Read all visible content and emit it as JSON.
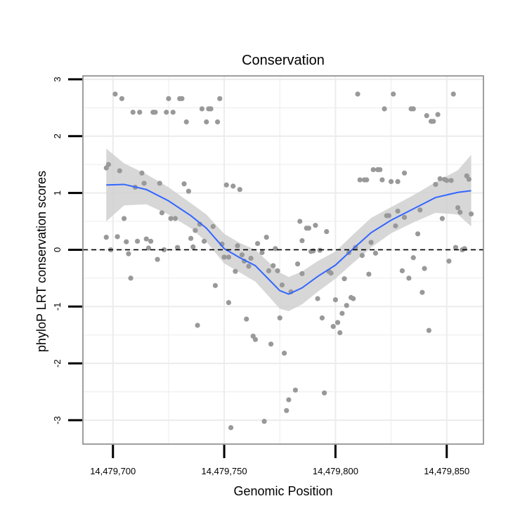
{
  "chart_data": {
    "type": "scatter",
    "title": "Conservation",
    "xlabel": "Genomic Position",
    "ylabel": "phyloP LRT conservation scores",
    "xlim": [
      14479686.5,
      14479866.5
    ],
    "ylim": [
      -3.42,
      3.06
    ],
    "x_ticks": [
      {
        "value": 14479700,
        "label": "14,479,700"
      },
      {
        "value": 14479750,
        "label": "14,479,750"
      },
      {
        "value": 14479800,
        "label": "14,479,800"
      },
      {
        "value": 14479850,
        "label": "14,479,850"
      }
    ],
    "y_ticks": [
      {
        "value": -3,
        "label": "-3"
      },
      {
        "value": -2,
        "label": "-2"
      },
      {
        "value": -1,
        "label": "-1"
      },
      {
        "value": 0,
        "label": "0"
      },
      {
        "value": 1,
        "label": "1"
      },
      {
        "value": 2,
        "label": "2"
      },
      {
        "value": 3,
        "label": "3"
      }
    ],
    "grid": true,
    "reference_line": {
      "y": 0,
      "style": "dashed"
    },
    "colors": {
      "points": "#999999",
      "smooth": "#3366ff",
      "ribbon": "#d0d0d0",
      "grid": "#ececec",
      "frame": "#7f7f7f"
    },
    "points": [
      [
        14479697,
        1.44
      ],
      [
        14479698,
        1.5
      ],
      [
        14479697,
        0.22
      ],
      [
        14479699,
        0.0
      ],
      [
        14479701,
        2.74
      ],
      [
        14479702,
        0.23
      ],
      [
        14479703,
        1.39
      ],
      [
        14479704,
        2.66
      ],
      [
        14479705,
        0.55
      ],
      [
        14479706,
        0.14
      ],
      [
        14479707,
        -0.07
      ],
      [
        14479708,
        -0.5
      ],
      [
        14479709,
        2.42
      ],
      [
        14479710,
        1.1
      ],
      [
        14479711,
        0.15
      ],
      [
        14479712,
        2.42
      ],
      [
        14479713,
        1.35
      ],
      [
        14479714,
        1.17
      ],
      [
        14479715,
        0.19
      ],
      [
        14479716,
        0.03
      ],
      [
        14479717,
        0.15
      ],
      [
        14479718,
        2.42
      ],
      [
        14479719,
        2.42
      ],
      [
        14479720,
        -0.17
      ],
      [
        14479721,
        1.17
      ],
      [
        14479722,
        0.65
      ],
      [
        14479723,
        0.0
      ],
      [
        14479724,
        2.42
      ],
      [
        14479725,
        2.66
      ],
      [
        14479726,
        0.55
      ],
      [
        14479727,
        2.42
      ],
      [
        14479728,
        0.55
      ],
      [
        14479729,
        0.04
      ],
      [
        14479730,
        2.66
      ],
      [
        14479731,
        2.66
      ],
      [
        14479732,
        1.16
      ],
      [
        14479733,
        2.25
      ],
      [
        14479734,
        1.03
      ],
      [
        14479735,
        0.2
      ],
      [
        14479736,
        0.05
      ],
      [
        14479737,
        0.34
      ],
      [
        14479738,
        -1.33
      ],
      [
        14479739,
        0.45
      ],
      [
        14479740,
        2.48
      ],
      [
        14479741,
        0.15
      ],
      [
        14479742,
        2.25
      ],
      [
        14479743,
        2.48
      ],
      [
        14479744,
        2.48
      ],
      [
        14479745,
        0.41
      ],
      [
        14479746,
        -0.63
      ],
      [
        14479747,
        2.25
      ],
      [
        14479748,
        2.66
      ],
      [
        14479749,
        0.1
      ],
      [
        14479750,
        -0.13
      ],
      [
        14479751,
        1.14
      ],
      [
        14479752,
        -0.13
      ],
      [
        14479752,
        -0.93
      ],
      [
        14479754,
        1.12
      ],
      [
        14479755,
        -0.38
      ],
      [
        14479756,
        0.07
      ],
      [
        14479757,
        1.06
      ],
      [
        14479758,
        -0.09
      ],
      [
        14479759,
        -0.2
      ],
      [
        14479760,
        -1.22
      ],
      [
        14479761,
        -0.29
      ],
      [
        14479762,
        -0.15
      ],
      [
        14479763,
        -1.52
      ],
      [
        14479764,
        -1.58
      ],
      [
        14479765,
        0.11
      ],
      [
        14479767,
        -0.05
      ],
      [
        14479768,
        -3.02
      ],
      [
        14479769,
        0.22
      ],
      [
        14479770,
        -0.37
      ],
      [
        14479771,
        -1.66
      ],
      [
        14479772,
        -0.28
      ],
      [
        14479753,
        -3.13
      ],
      [
        14479773,
        0.02
      ],
      [
        14479774,
        -0.37
      ],
      [
        14479775,
        -1.2
      ],
      [
        14479776,
        -0.62
      ],
      [
        14479777,
        -1.82
      ],
      [
        14479778,
        -2.83
      ],
      [
        14479779,
        -2.64
      ],
      [
        14479780,
        -0.74
      ],
      [
        14479782,
        -2.47
      ],
      [
        14479783,
        -0.25
      ],
      [
        14479784,
        0.5
      ],
      [
        14479785,
        -0.42
      ],
      [
        14479785,
        0.16
      ],
      [
        14479787,
        0.38
      ],
      [
        14479788,
        0.38
      ],
      [
        14479789,
        -0.03
      ],
      [
        14479790,
        -0.02
      ],
      [
        14479791,
        0.43
      ],
      [
        14479792,
        -0.86
      ],
      [
        14479793,
        -0.01
      ],
      [
        14479794,
        -1.2
      ],
      [
        14479795,
        -2.52
      ],
      [
        14479796,
        0.32
      ],
      [
        14479797,
        -0.38
      ],
      [
        14479798,
        -0.41
      ],
      [
        14479799,
        -1.35
      ],
      [
        14479800,
        -0.88
      ],
      [
        14479801,
        -1.28
      ],
      [
        14479802,
        -1.46
      ],
      [
        14479803,
        -1.12
      ],
      [
        14479804,
        -0.51
      ],
      [
        14479805,
        -0.98
      ],
      [
        14479806,
        -0.05
      ],
      [
        14479807,
        -0.84
      ],
      [
        14479808,
        -0.86
      ],
      [
        14479809,
        0.04
      ],
      [
        14479810,
        2.74
      ],
      [
        14479811,
        1.23
      ],
      [
        14479812,
        -0.1
      ],
      [
        14479813,
        1.23
      ],
      [
        14479814,
        1.23
      ],
      [
        14479815,
        -0.43
      ],
      [
        14479816,
        0.13
      ],
      [
        14479817,
        1.41
      ],
      [
        14479818,
        -0.06
      ],
      [
        14479819,
        1.41
      ],
      [
        14479820,
        1.41
      ],
      [
        14479821,
        1.23
      ],
      [
        14479822,
        2.48
      ],
      [
        14479823,
        0.6
      ],
      [
        14479824,
        0.6
      ],
      [
        14479825,
        1.2
      ],
      [
        14479826,
        2.74
      ],
      [
        14479827,
        0.42
      ],
      [
        14479828,
        1.2
      ],
      [
        14479828,
        0.68
      ],
      [
        14479830,
        -0.37
      ],
      [
        14479831,
        1.35
      ],
      [
        14479831,
        0.57
      ],
      [
        14479833,
        -0.5
      ],
      [
        14479834,
        2.48
      ],
      [
        14479835,
        2.48
      ],
      [
        14479835,
        -0.14
      ],
      [
        14479837,
        0.28
      ],
      [
        14479838,
        0.7
      ],
      [
        14479839,
        -0.75
      ],
      [
        14479840,
        -0.33
      ],
      [
        14479841,
        2.36
      ],
      [
        14479842,
        -1.42
      ],
      [
        14479843,
        2.26
      ],
      [
        14479844,
        2.26
      ],
      [
        14479845,
        1.15
      ],
      [
        14479846,
        2.38
      ],
      [
        14479847,
        1.25
      ],
      [
        14479848,
        0.55
      ],
      [
        14479849,
        1.24
      ],
      [
        14479850,
        1.22
      ],
      [
        14479851,
        -0.2
      ],
      [
        14479852,
        1.22
      ],
      [
        14479853,
        2.74
      ],
      [
        14479854,
        0.04
      ],
      [
        14479855,
        0.74
      ],
      [
        14479856,
        0.66
      ],
      [
        14479857,
        0.0
      ],
      [
        14479858,
        0.02
      ],
      [
        14479859,
        1.3
      ],
      [
        14479860,
        1.24
      ],
      [
        14479861,
        0.63
      ]
    ],
    "smooth_fit": [
      [
        14479697,
        1.14
      ],
      [
        14479705,
        1.15
      ],
      [
        14479715,
        1.06
      ],
      [
        14479725,
        0.86
      ],
      [
        14479735,
        0.6
      ],
      [
        14479742,
        0.38
      ],
      [
        14479750,
        0.02
      ],
      [
        14479757,
        -0.14
      ],
      [
        14479764,
        -0.28
      ],
      [
        14479770,
        -0.52
      ],
      [
        14479775,
        -0.72
      ],
      [
        14479779,
        -0.78
      ],
      [
        14479785,
        -0.67
      ],
      [
        14479792,
        -0.47
      ],
      [
        14479800,
        -0.27
      ],
      [
        14479808,
        0.02
      ],
      [
        14479816,
        0.3
      ],
      [
        14479825,
        0.52
      ],
      [
        14479835,
        0.72
      ],
      [
        14479845,
        0.92
      ],
      [
        14479855,
        1.01
      ],
      [
        14479861,
        1.04
      ]
    ],
    "ribbon_upper": [
      [
        14479697,
        1.78
      ],
      [
        14479705,
        1.52
      ],
      [
        14479715,
        1.33
      ],
      [
        14479725,
        1.1
      ],
      [
        14479735,
        0.82
      ],
      [
        14479742,
        0.62
      ],
      [
        14479750,
        0.28
      ],
      [
        14479757,
        0.12
      ],
      [
        14479764,
        0.0
      ],
      [
        14479770,
        -0.22
      ],
      [
        14479775,
        -0.4
      ],
      [
        14479779,
        -0.48
      ],
      [
        14479785,
        -0.38
      ],
      [
        14479792,
        -0.2
      ],
      [
        14479800,
        -0.03
      ],
      [
        14479808,
        0.27
      ],
      [
        14479816,
        0.56
      ],
      [
        14479825,
        0.75
      ],
      [
        14479835,
        0.96
      ],
      [
        14479845,
        1.19
      ],
      [
        14479855,
        1.4
      ],
      [
        14479861,
        1.67
      ]
    ],
    "ribbon_lower": [
      [
        14479697,
        0.5
      ],
      [
        14479705,
        0.78
      ],
      [
        14479715,
        0.8
      ],
      [
        14479725,
        0.62
      ],
      [
        14479735,
        0.38
      ],
      [
        14479742,
        0.14
      ],
      [
        14479750,
        -0.24
      ],
      [
        14479757,
        -0.4
      ],
      [
        14479764,
        -0.56
      ],
      [
        14479770,
        -0.82
      ],
      [
        14479775,
        -1.04
      ],
      [
        14479779,
        -1.08
      ],
      [
        14479785,
        -0.96
      ],
      [
        14479792,
        -0.74
      ],
      [
        14479800,
        -0.51
      ],
      [
        14479808,
        -0.23
      ],
      [
        14479816,
        0.04
      ],
      [
        14479825,
        0.29
      ],
      [
        14479835,
        0.48
      ],
      [
        14479845,
        0.65
      ],
      [
        14479855,
        0.62
      ],
      [
        14479861,
        0.41
      ]
    ]
  }
}
